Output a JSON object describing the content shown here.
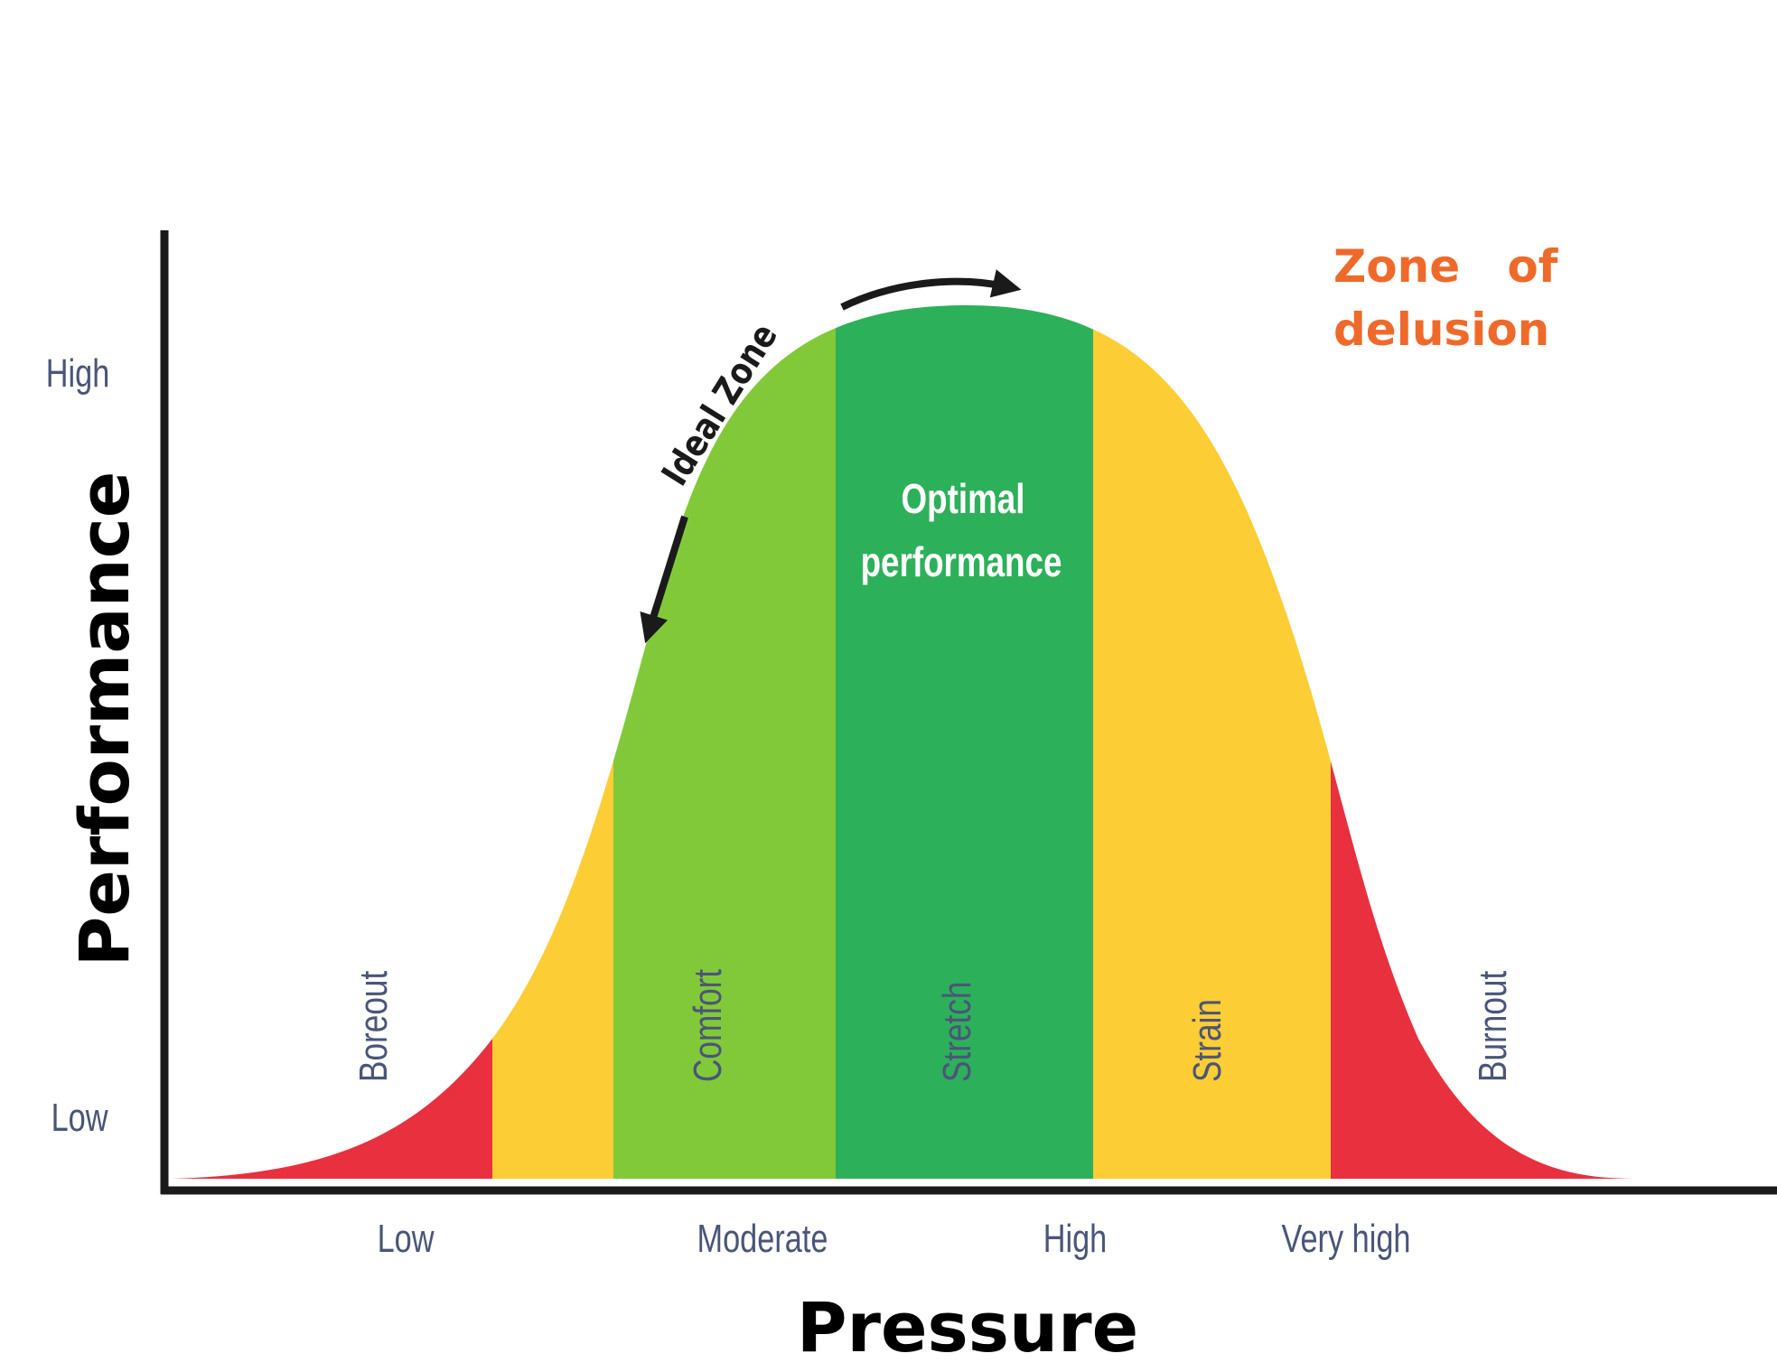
{
  "diagram": {
    "y_axis_title": "Performance",
    "x_axis_title": "Pressure",
    "y_ticks": [
      "High",
      "Low"
    ],
    "x_ticks": [
      "Low",
      "Moderate",
      "High",
      "Very high"
    ],
    "zones": [
      {
        "name": "Boreout",
        "color": "#e8303e"
      },
      {
        "name": "Comfort",
        "color": "#82c93a"
      },
      {
        "name": "Stretch",
        "color": "#2db05a"
      },
      {
        "name": "Strain",
        "color": "#fdcd35"
      },
      {
        "name": "Burnout",
        "color": "#e8303e"
      }
    ],
    "edge_color": "#fdcd35",
    "optimal_label_line1": "Optimal",
    "optimal_label_line2": "performance",
    "ideal_zone_label": "Ideal Zone",
    "delusion_line1": "Zone   of",
    "delusion_line2": "delusion"
  }
}
